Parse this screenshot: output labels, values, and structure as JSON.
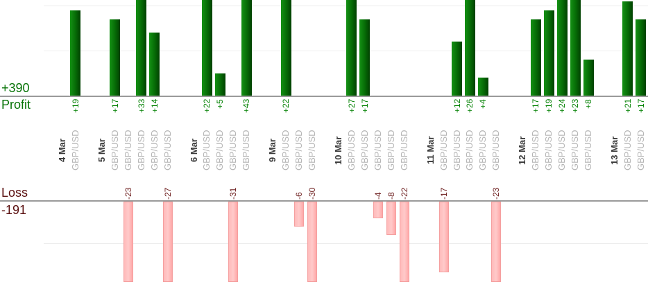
{
  "summary": {
    "profit_total_label": "+390",
    "profit_axis_label": "Profit",
    "loss_axis_label": "Loss",
    "loss_total_label": "-191"
  },
  "colors": {
    "profit_text": "#008000",
    "profit_summary_text": "#077306",
    "loss_text": "#6f2121",
    "loss_summary_text": "#5a0f0f",
    "date_text": "#3a3a3a",
    "symbol_text": "#b5b5b5",
    "baseline": "#9a9a9a",
    "gridline": "#ededed",
    "loss_bar_border": "#f59f9f",
    "profit_bar_gradient": [
      "#149114",
      "#076e07",
      "#014101"
    ],
    "loss_bar_gradient": [
      "#ffbaba",
      "#ffcaca",
      "#ffa8a8"
    ]
  },
  "chart_data": {
    "type": "bar",
    "symbol": "GBP/USD",
    "profit_total": 390,
    "loss_total": -191,
    "profit_gridline_values": [
      10,
      20
    ],
    "loss_gridline_values": [
      -10
    ],
    "profit_axis_clip": 21.2,
    "loss_axis_clip": -19.3,
    "groups": [
      {
        "date": "4 Mar",
        "trades": [
          {
            "symbol": "GBP/USD",
            "value": 19,
            "label": "+19"
          }
        ]
      },
      {
        "date": "5 Mar",
        "trades": [
          {
            "symbol": "GBP/USD",
            "value": 17,
            "label": "+17"
          },
          {
            "symbol": "GBP/USD",
            "value": -23,
            "label": "-23"
          },
          {
            "symbol": "GBP/USD",
            "value": 33,
            "label": "+33"
          },
          {
            "symbol": "GBP/USD",
            "value": 14,
            "label": "+14"
          },
          {
            "symbol": "GBP/USD",
            "value": -27,
            "label": "-27"
          }
        ]
      },
      {
        "date": "6 Mar",
        "trades": [
          {
            "symbol": "GBP/USD",
            "value": 22,
            "label": "+22"
          },
          {
            "symbol": "GBP/USD",
            "value": 5,
            "label": "+5"
          },
          {
            "symbol": "GBP/USD",
            "value": -31,
            "label": "-31"
          },
          {
            "symbol": "GBP/USD",
            "value": 43,
            "label": "+43"
          }
        ]
      },
      {
        "date": "9 Mar",
        "trades": [
          {
            "symbol": "GBP/USD",
            "value": 22,
            "label": "+22"
          },
          {
            "symbol": "GBP/USD",
            "value": -6,
            "label": "-6"
          },
          {
            "symbol": "GBP/USD",
            "value": -30,
            "label": "-30"
          }
        ]
      },
      {
        "date": "10 Mar",
        "trades": [
          {
            "symbol": "GBP/USD",
            "value": 27,
            "label": "+27"
          },
          {
            "symbol": "GBP/USD",
            "value": 17,
            "label": "+17"
          },
          {
            "symbol": "GBP/USD",
            "value": -4,
            "label": "-4"
          },
          {
            "symbol": "GBP/USD",
            "value": -8,
            "label": "-8"
          },
          {
            "symbol": "GBP/USD",
            "value": -22,
            "label": "-22"
          }
        ]
      },
      {
        "date": "11 Mar",
        "trades": [
          {
            "symbol": "GBP/USD",
            "value": -17,
            "label": "-17"
          },
          {
            "symbol": "GBP/USD",
            "value": 12,
            "label": "+12"
          },
          {
            "symbol": "GBP/USD",
            "value": 26,
            "label": "+26"
          },
          {
            "symbol": "GBP/USD",
            "value": 4,
            "label": "+4"
          },
          {
            "symbol": "GBP/USD",
            "value": -23,
            "label": "-23"
          }
        ]
      },
      {
        "date": "12 Mar",
        "trades": [
          {
            "symbol": "GBP/USD",
            "value": 17,
            "label": "+17"
          },
          {
            "symbol": "GBP/USD",
            "value": 19,
            "label": "+19"
          },
          {
            "symbol": "GBP/USD",
            "value": 24,
            "label": "+24"
          },
          {
            "symbol": "GBP/USD",
            "value": 23,
            "label": "+23"
          },
          {
            "symbol": "GBP/USD",
            "value": 8,
            "label": "+8"
          }
        ]
      },
      {
        "date": "13 Mar",
        "trades": [
          {
            "symbol": "GBP/USD",
            "value": 21,
            "label": "+21"
          },
          {
            "symbol": "GBP/USD",
            "value": 17,
            "label": "+17"
          }
        ]
      }
    ]
  }
}
